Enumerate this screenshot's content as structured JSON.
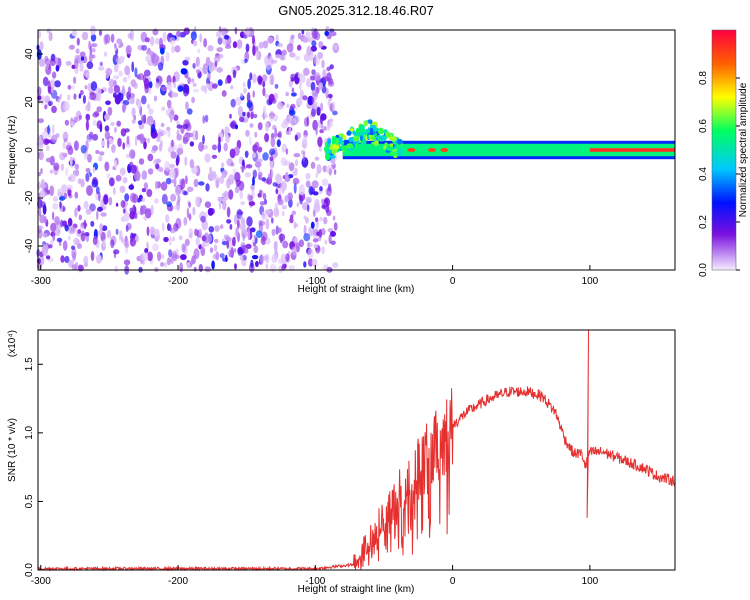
{
  "title": "GN05.2025.312.18.46.R07",
  "chart_data": [
    {
      "type": "heatmap",
      "xlabel": "Height of straight line (km)",
      "ylabel": "Frequency (Hz)",
      "xlim": [
        -302,
        162
      ],
      "ylim": [
        -50,
        50
      ],
      "xticks": [
        "-300",
        "-200",
        "-100",
        "0",
        "100"
      ],
      "yticks": [
        "-40",
        "-20",
        "0",
        "20",
        "40"
      ],
      "colorbar": {
        "label": "Normalized spectral amplitude",
        "range": [
          0,
          1
        ],
        "ticks": [
          "0.0",
          "0.2",
          "0.4",
          "0.6",
          "0.8"
        ],
        "colors": [
          "#f5ecff",
          "#7a10e0",
          "#0010ff",
          "#00c8ff",
          "#00ff60",
          "#ffff00",
          "#ff6000",
          "#ff0040"
        ]
      },
      "noise_region_km": [
        -302,
        -85
      ],
      "signal_band_hz": [
        -3,
        3
      ],
      "peak_hz": 0
    },
    {
      "type": "line",
      "xlabel": "Height of straight line (km)",
      "ylabel": "SNR (10 * v/v)",
      "y_multiplier": "(x10⁴)",
      "xlim": [
        -302,
        162
      ],
      "ylim": [
        0,
        1.75
      ],
      "xticks": [
        "-300",
        "-200",
        "-100",
        "0",
        "100"
      ],
      "yticks": [
        "0.0",
        "0.5",
        "1.0",
        "1.5"
      ],
      "color": "#e53030",
      "envelope": {
        "x": [
          -302,
          -200,
          -100,
          -72,
          -60,
          -50,
          -40,
          -30,
          -20,
          -10,
          0,
          10,
          25,
          40,
          55,
          65,
          75,
          82,
          88,
          94,
          97,
          99,
          102,
          110,
          125,
          140,
          150,
          162
        ],
        "y": [
          0.01,
          0.01,
          0.01,
          0.04,
          0.2,
          0.38,
          0.52,
          0.68,
          0.8,
          0.92,
          1.05,
          1.15,
          1.24,
          1.3,
          1.3,
          1.27,
          1.15,
          0.95,
          0.85,
          0.85,
          0.75,
          0.85,
          0.86,
          0.86,
          0.8,
          0.74,
          0.68,
          0.65
        ]
      },
      "spikes": [
        {
          "x": 99,
          "y": 1.75
        },
        {
          "x": 98,
          "y": 0.38
        }
      ]
    }
  ]
}
